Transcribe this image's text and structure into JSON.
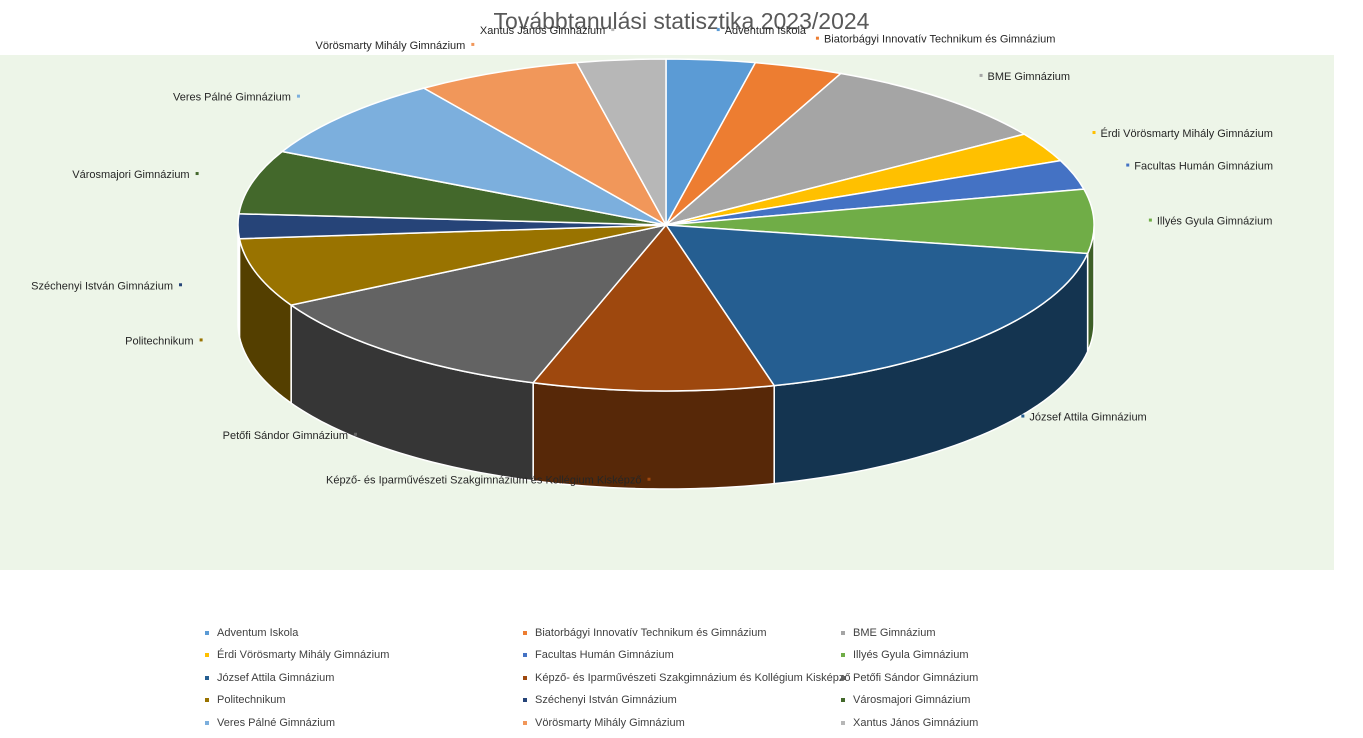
{
  "chart_data": {
    "type": "pie",
    "title": "Továbbtanulási statisztika 2023/2024",
    "legend_position": "bottom",
    "style": "3d-pie",
    "slices": [
      {
        "label": "Adventum Iskola",
        "value": 3.5,
        "color": "#5b9bd5"
      },
      {
        "label": "Biatorbágyi Innovatív Technikum és Gimnázium",
        "value": 3.5,
        "color": "#ed7d31"
      },
      {
        "label": "BME Gimnázium",
        "value": 9.5,
        "color": "#a5a5a5"
      },
      {
        "label": "Érdi Vörösmarty Mihály Gimnázium",
        "value": 3.0,
        "color": "#ffc000"
      },
      {
        "label": "Facultas Humán Gimnázium",
        "value": 3.0,
        "color": "#4472c4"
      },
      {
        "label": "Illyés Gyula Gimnázium",
        "value": 6.5,
        "color": "#70ad47"
      },
      {
        "label": "József Attila Gimnázium",
        "value": 19.0,
        "color": "#255e91"
      },
      {
        "label": "Képző- és Iparművészeti Szakgimnázium és Kollégium Kisképző",
        "value": 9.5,
        "color": "#9e480e"
      },
      {
        "label": "Petőfi Sándor Gimnázium",
        "value": 12.5,
        "color": "#636363"
      },
      {
        "label": "Politechnikum",
        "value": 7.0,
        "color": "#997300"
      },
      {
        "label": "Széchenyi István Gimnázium",
        "value": 2.5,
        "color": "#264478"
      },
      {
        "label": "Városmajori Gimnázium",
        "value": 6.5,
        "color": "#43682b"
      },
      {
        "label": "Veres Pálné Gimnázium",
        "value": 8.5,
        "color": "#7cafdd"
      },
      {
        "label": "Vörösmarty Mihály Gimnázium",
        "value": 6.5,
        "color": "#f1975a"
      },
      {
        "label": "Xantus János Gimnázium",
        "value": 3.5,
        "color": "#b7b7b7"
      }
    ]
  }
}
